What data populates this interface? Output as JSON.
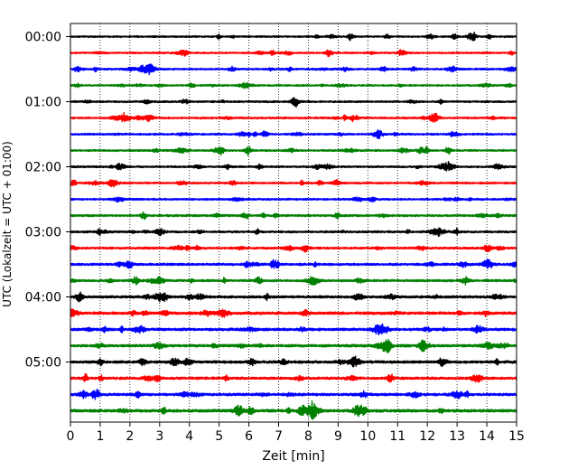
{
  "chart_data": {
    "type": "line",
    "title": "",
    "xlabel": "Zeit  [min]",
    "ylabel": "UTC (Lokalzeit = UTC + 01:00)",
    "xlim": [
      0,
      15
    ],
    "xticks": [
      0,
      1,
      2,
      3,
      4,
      5,
      6,
      7,
      8,
      9,
      10,
      11,
      12,
      13,
      14,
      15
    ],
    "xtick_labels": [
      "0",
      "1",
      "2",
      "3",
      "4",
      "5",
      "6",
      "7",
      "8",
      "9",
      "10",
      "11",
      "12",
      "13",
      "14",
      "15"
    ],
    "y_tick_labels": [
      "00:00",
      "01:00",
      "02:00",
      "03:00",
      "04:00",
      "05:00"
    ],
    "y_tick_trace_indices": [
      0,
      4,
      8,
      12,
      16,
      20
    ],
    "grid": {
      "x": true,
      "style": "dotted"
    },
    "trace_interval_minutes": 15,
    "trace_count": 24,
    "trace_colors": [
      "#000000",
      "#ff0000",
      "#0000ff",
      "#008000"
    ],
    "traces": [
      {
        "start_utc": "00:00",
        "amplitude": 0.9
      },
      {
        "start_utc": "00:15",
        "amplitude": 0.9
      },
      {
        "start_utc": "00:30",
        "amplitude": 1.0
      },
      {
        "start_utc": "00:45",
        "amplitude": 0.9
      },
      {
        "start_utc": "01:00",
        "amplitude": 1.0
      },
      {
        "start_utc": "01:15",
        "amplitude": 1.0
      },
      {
        "start_utc": "01:30",
        "amplitude": 1.0
      },
      {
        "start_utc": "01:45",
        "amplitude": 1.0
      },
      {
        "start_utc": "02:00",
        "amplitude": 1.0
      },
      {
        "start_utc": "02:15",
        "amplitude": 1.0
      },
      {
        "start_utc": "02:30",
        "amplitude": 1.0
      },
      {
        "start_utc": "02:45",
        "amplitude": 1.1
      },
      {
        "start_utc": "03:00",
        "amplitude": 1.1
      },
      {
        "start_utc": "03:15",
        "amplitude": 1.1
      },
      {
        "start_utc": "03:30",
        "amplitude": 1.2
      },
      {
        "start_utc": "03:45",
        "amplitude": 1.2
      },
      {
        "start_utc": "04:00",
        "amplitude": 1.3
      },
      {
        "start_utc": "04:15",
        "amplitude": 1.4
      },
      {
        "start_utc": "04:30",
        "amplitude": 1.4
      },
      {
        "start_utc": "04:45",
        "amplitude": 1.4
      },
      {
        "start_utc": "05:00",
        "amplitude": 1.4
      },
      {
        "start_utc": "05:15",
        "amplitude": 1.3
      },
      {
        "start_utc": "05:30",
        "amplitude": 1.4
      },
      {
        "start_utc": "05:45",
        "amplitude": 1.5
      }
    ]
  }
}
